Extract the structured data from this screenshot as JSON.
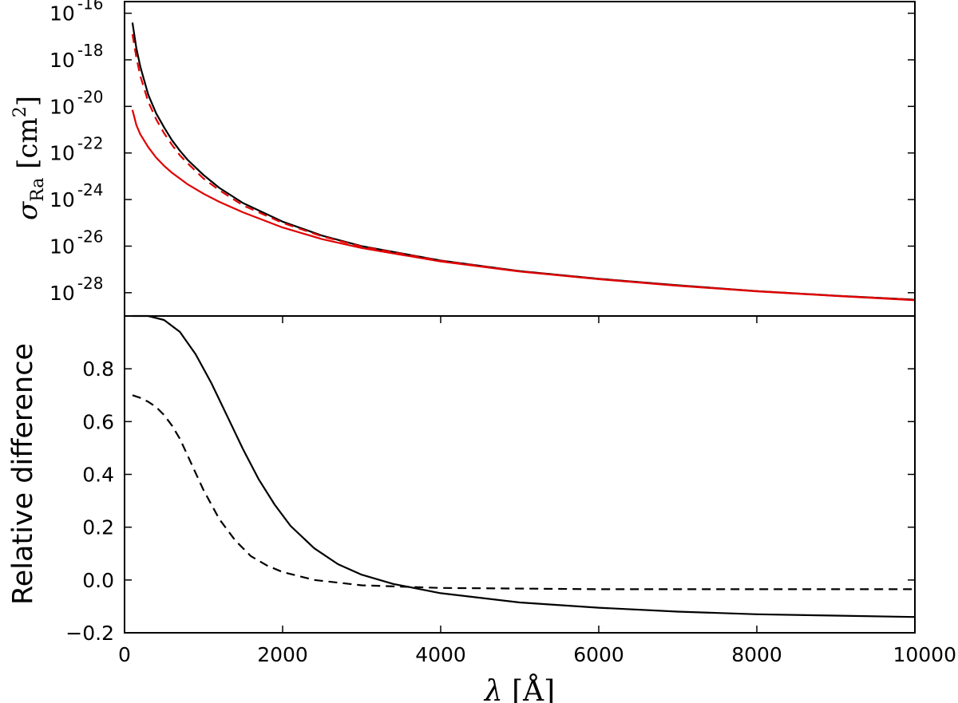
{
  "chart_data": [
    {
      "type": "line",
      "panel": "top",
      "ylabel": {
        "symbol": "σ",
        "subscript": "Ra",
        "unit": "[cm",
        "unit_power": "2",
        "unit_close": "]"
      },
      "yscale": "log",
      "ylim_log10": [
        -29.0,
        -15.5
      ],
      "xlim": [
        0,
        10000
      ],
      "yticks": [
        {
          "base": "10",
          "exp": "-16",
          "value_log10": -16
        },
        {
          "base": "10",
          "exp": "-18",
          "value_log10": -18
        },
        {
          "base": "10",
          "exp": "-20",
          "value_log10": -20
        },
        {
          "base": "10",
          "exp": "-22",
          "value_log10": -22
        },
        {
          "base": "10",
          "exp": "-24",
          "value_log10": -24
        },
        {
          "base": "10",
          "exp": "-26",
          "value_log10": -26
        },
        {
          "base": "10",
          "exp": "-28",
          "value_log10": -28
        }
      ],
      "series": [
        {
          "style": "solid",
          "color": "#000000",
          "points": [
            [
              100,
              -16.4
            ],
            [
              150,
              -17.5
            ],
            [
              200,
              -18.3
            ],
            [
              300,
              -19.5
            ],
            [
              400,
              -20.3
            ],
            [
              500,
              -20.9
            ],
            [
              600,
              -21.45
            ],
            [
              700,
              -21.9
            ],
            [
              800,
              -22.3
            ],
            [
              1000,
              -22.95
            ],
            [
              1200,
              -23.5
            ],
            [
              1500,
              -24.15
            ],
            [
              2000,
              -24.95
            ],
            [
              2500,
              -25.55
            ],
            [
              3000,
              -26.0
            ],
            [
              4000,
              -26.62
            ],
            [
              5000,
              -27.07
            ],
            [
              6000,
              -27.4
            ],
            [
              7000,
              -27.68
            ],
            [
              8000,
              -27.93
            ],
            [
              9000,
              -28.13
            ],
            [
              10000,
              -28.3
            ]
          ]
        },
        {
          "style": "dashed",
          "color": "#e00000",
          "points": [
            [
              100,
              -16.9
            ],
            [
              150,
              -17.9
            ],
            [
              200,
              -18.7
            ],
            [
              300,
              -19.8
            ],
            [
              400,
              -20.55
            ],
            [
              500,
              -21.15
            ],
            [
              600,
              -21.65
            ],
            [
              700,
              -22.1
            ],
            [
              800,
              -22.45
            ],
            [
              1000,
              -23.1
            ],
            [
              1200,
              -23.6
            ],
            [
              1500,
              -24.25
            ],
            [
              2000,
              -25.0
            ],
            [
              2500,
              -25.58
            ],
            [
              3000,
              -26.02
            ],
            [
              4000,
              -26.63
            ],
            [
              5000,
              -27.08
            ],
            [
              6000,
              -27.41
            ],
            [
              7000,
              -27.69
            ],
            [
              8000,
              -27.93
            ],
            [
              9000,
              -28.13
            ],
            [
              10000,
              -28.3
            ]
          ]
        },
        {
          "style": "solid",
          "color": "#e00000",
          "points": [
            [
              100,
              -20.15
            ],
            [
              150,
              -20.8
            ],
            [
              200,
              -21.2
            ],
            [
              300,
              -21.75
            ],
            [
              400,
              -22.2
            ],
            [
              500,
              -22.55
            ],
            [
              600,
              -22.85
            ],
            [
              700,
              -23.1
            ],
            [
              800,
              -23.35
            ],
            [
              1000,
              -23.75
            ],
            [
              1200,
              -24.1
            ],
            [
              1500,
              -24.55
            ],
            [
              2000,
              -25.2
            ],
            [
              2500,
              -25.7
            ],
            [
              3000,
              -26.08
            ],
            [
              4000,
              -26.66
            ],
            [
              5000,
              -27.09
            ],
            [
              6000,
              -27.42
            ],
            [
              7000,
              -27.7
            ],
            [
              8000,
              -27.94
            ],
            [
              9000,
              -28.14
            ],
            [
              10000,
              -28.32
            ]
          ]
        }
      ]
    },
    {
      "type": "line",
      "panel": "bottom",
      "xlabel": {
        "symbol": "λ",
        "unit": "[Å]"
      },
      "ylabel": "Relative difference",
      "xlim": [
        0,
        10000
      ],
      "ylim": [
        -0.2,
        1.0
      ],
      "xticks": [
        "0",
        "2000",
        "4000",
        "6000",
        "8000",
        "10000"
      ],
      "yticks": [
        "0.8",
        "0.6",
        "0.4",
        "0.2",
        "0.0",
        "−0.2"
      ],
      "series": [
        {
          "style": "solid",
          "color": "#000000",
          "points": [
            [
              100,
              1.0
            ],
            [
              300,
              1.0
            ],
            [
              500,
              0.985
            ],
            [
              700,
              0.94
            ],
            [
              900,
              0.855
            ],
            [
              1100,
              0.745
            ],
            [
              1300,
              0.62
            ],
            [
              1500,
              0.495
            ],
            [
              1700,
              0.38
            ],
            [
              1900,
              0.285
            ],
            [
              2100,
              0.205
            ],
            [
              2400,
              0.12
            ],
            [
              2700,
              0.06
            ],
            [
              3000,
              0.02
            ],
            [
              3400,
              -0.015
            ],
            [
              4000,
              -0.05
            ],
            [
              5000,
              -0.085
            ],
            [
              6000,
              -0.105
            ],
            [
              7000,
              -0.12
            ],
            [
              8000,
              -0.13
            ],
            [
              9000,
              -0.135
            ],
            [
              10000,
              -0.14
            ]
          ]
        },
        {
          "style": "dashed",
          "color": "#000000",
          "points": [
            [
              100,
              0.7
            ],
            [
              200,
              0.69
            ],
            [
              300,
              0.675
            ],
            [
              400,
              0.655
            ],
            [
              500,
              0.625
            ],
            [
              600,
              0.585
            ],
            [
              700,
              0.535
            ],
            [
              800,
              0.47
            ],
            [
              900,
              0.405
            ],
            [
              1000,
              0.34
            ],
            [
              1200,
              0.23
            ],
            [
              1400,
              0.15
            ],
            [
              1600,
              0.09
            ],
            [
              1800,
              0.055
            ],
            [
              2000,
              0.03
            ],
            [
              2400,
              0.0
            ],
            [
              3000,
              -0.02
            ],
            [
              4000,
              -0.03
            ],
            [
              6000,
              -0.035
            ],
            [
              8000,
              -0.035
            ],
            [
              10000,
              -0.035
            ]
          ]
        }
      ]
    }
  ]
}
